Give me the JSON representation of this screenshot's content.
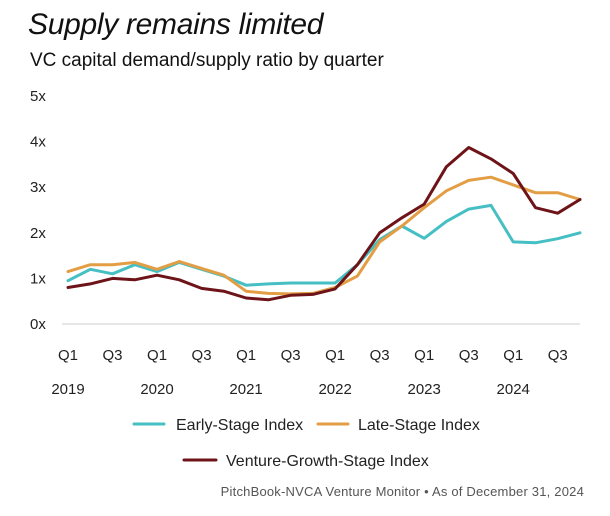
{
  "title": "Supply remains limited",
  "subtitle": "VC capital demand/supply ratio by quarter",
  "source": "PitchBook-NVCA Venture Monitor  •  As of December 31, 2024",
  "colors": {
    "early": "#45BFC3",
    "late": "#E39E45",
    "growth": "#6E1419",
    "axis": "#cccccc",
    "text": "#222222"
  },
  "chart_data": {
    "type": "line",
    "title": "Supply remains limited",
    "subtitle": "VC capital demand/supply ratio by quarter",
    "xlabel": "",
    "ylabel": "",
    "ylim": [
      0,
      5
    ],
    "yticks": [
      "0x",
      "1x",
      "2x",
      "3x",
      "4x",
      "5x"
    ],
    "ytick_values": [
      0,
      1,
      2,
      3,
      4,
      5
    ],
    "grid": false,
    "legend_position": "bottom",
    "x": [
      "2019 Q1",
      "2019 Q2",
      "2019 Q3",
      "2019 Q4",
      "2020 Q1",
      "2020 Q2",
      "2020 Q3",
      "2020 Q4",
      "2021 Q1",
      "2021 Q2",
      "2021 Q3",
      "2021 Q4",
      "2022 Q1",
      "2022 Q2",
      "2022 Q3",
      "2022 Q4",
      "2023 Q1",
      "2023 Q2",
      "2023 Q3",
      "2023 Q4",
      "2024 Q1",
      "2024 Q2",
      "2024 Q3",
      "2024 Q4"
    ],
    "x_tick_labels": [
      "Q1",
      "Q3",
      "Q1",
      "Q3",
      "Q1",
      "Q3",
      "Q1",
      "Q3",
      "Q1",
      "Q3",
      "Q1",
      "Q3"
    ],
    "x_tick_indices": [
      0,
      2,
      4,
      6,
      8,
      10,
      12,
      14,
      16,
      18,
      20,
      22
    ],
    "year_labels": [
      "2019",
      "2020",
      "2021",
      "2022",
      "2023",
      "2024"
    ],
    "year_indices": [
      0,
      4,
      8,
      12,
      16,
      20
    ],
    "series": [
      {
        "name": "Early-Stage Index",
        "color": "#45BFC3",
        "values": [
          0.95,
          1.2,
          1.1,
          1.3,
          1.15,
          1.35,
          1.2,
          1.05,
          0.85,
          0.88,
          0.9,
          0.9,
          0.9,
          1.3,
          1.85,
          2.15,
          1.88,
          2.25,
          2.52,
          2.6,
          1.8,
          1.78,
          1.87,
          2.0
        ]
      },
      {
        "name": "Late-Stage Index",
        "color": "#E39E45",
        "values": [
          1.15,
          1.3,
          1.3,
          1.35,
          1.2,
          1.37,
          1.22,
          1.07,
          0.72,
          0.67,
          0.66,
          0.67,
          0.8,
          1.05,
          1.8,
          2.15,
          2.55,
          2.92,
          3.15,
          3.22,
          3.05,
          2.88,
          2.88,
          2.73
        ]
      },
      {
        "name": "Venture-Growth-Stage Index",
        "color": "#6E1419",
        "values": [
          0.8,
          0.88,
          1.0,
          0.97,
          1.07,
          0.97,
          0.78,
          0.72,
          0.57,
          0.53,
          0.63,
          0.65,
          0.77,
          1.3,
          2.0,
          2.33,
          2.63,
          3.45,
          3.87,
          3.62,
          3.3,
          2.55,
          2.43,
          2.73
        ]
      }
    ]
  }
}
